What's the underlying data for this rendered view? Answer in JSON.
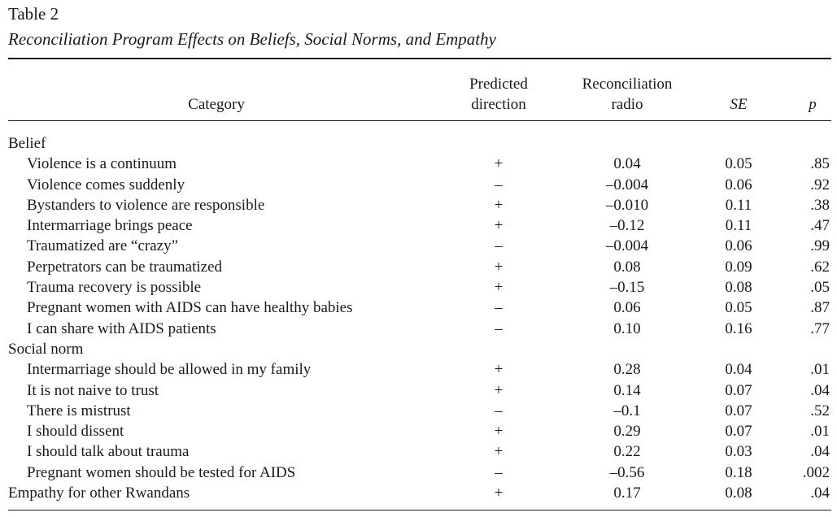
{
  "table": {
    "label": "Table 2",
    "caption": "Reconciliation Program Effects on Beliefs, Social Norms, and Empathy"
  },
  "headers": {
    "category": "Category",
    "predicted_line1": "Predicted",
    "predicted_line2": "direction",
    "recon_line1": "Reconciliation",
    "recon_line2": "radio",
    "se": "SE",
    "p": "p"
  },
  "rows": [
    {
      "kind": "group",
      "label": "Belief"
    },
    {
      "kind": "item",
      "label": "Violence is a continuum",
      "direction": "+",
      "recon": "0.04",
      "se": "0.05",
      "p": ".85"
    },
    {
      "kind": "item",
      "label": "Violence comes suddenly",
      "direction": "–",
      "recon": "–0.004",
      "se": "0.06",
      "p": ".92"
    },
    {
      "kind": "item",
      "label": "Bystanders to violence are responsible",
      "direction": "+",
      "recon": "–0.010",
      "se": "0.11",
      "p": ".38"
    },
    {
      "kind": "item",
      "label": "Intermarriage brings peace",
      "direction": "+",
      "recon": "–0.12",
      "se": "0.11",
      "p": ".47"
    },
    {
      "kind": "item",
      "label": "Traumatized are “crazy”",
      "direction": "–",
      "recon": "–0.004",
      "se": "0.06",
      "p": ".99"
    },
    {
      "kind": "item",
      "label": "Perpetrators can be traumatized",
      "direction": "+",
      "recon": "0.08",
      "se": "0.09",
      "p": ".62"
    },
    {
      "kind": "item",
      "label": "Trauma recovery is possible",
      "direction": "+",
      "recon": "–0.15",
      "se": "0.08",
      "p": ".05"
    },
    {
      "kind": "item",
      "label": "Pregnant women with AIDS can have healthy babies",
      "direction": "–",
      "recon": "0.06",
      "se": "0.05",
      "p": ".87"
    },
    {
      "kind": "item",
      "label": "I can share with AIDS patients",
      "direction": "–",
      "recon": "0.10",
      "se": "0.16",
      "p": ".77"
    },
    {
      "kind": "group",
      "label": "Social norm"
    },
    {
      "kind": "item",
      "label": "Intermarriage should be allowed in my family",
      "direction": "+",
      "recon": "0.28",
      "se": "0.04",
      "p": ".01"
    },
    {
      "kind": "item",
      "label": "It is not naive to trust",
      "direction": "+",
      "recon": "0.14",
      "se": "0.07",
      "p": ".04"
    },
    {
      "kind": "item",
      "label": "There is mistrust",
      "direction": "–",
      "recon": "–0.1",
      "se": "0.07",
      "p": ".52"
    },
    {
      "kind": "item",
      "label": "I should dissent",
      "direction": "+",
      "recon": "0.29",
      "se": "0.07",
      "p": ".01"
    },
    {
      "kind": "item",
      "label": "I should talk about trauma",
      "direction": "+",
      "recon": "0.22",
      "se": "0.03",
      "p": ".04"
    },
    {
      "kind": "item",
      "label": "Pregnant women should be tested for AIDS",
      "direction": "–",
      "recon": "–0.56",
      "se": "0.18",
      "p": ".002"
    },
    {
      "kind": "top",
      "label": "Empathy for other Rwandans",
      "direction": "+",
      "recon": "0.17",
      "se": "0.08",
      "p": ".04"
    }
  ]
}
